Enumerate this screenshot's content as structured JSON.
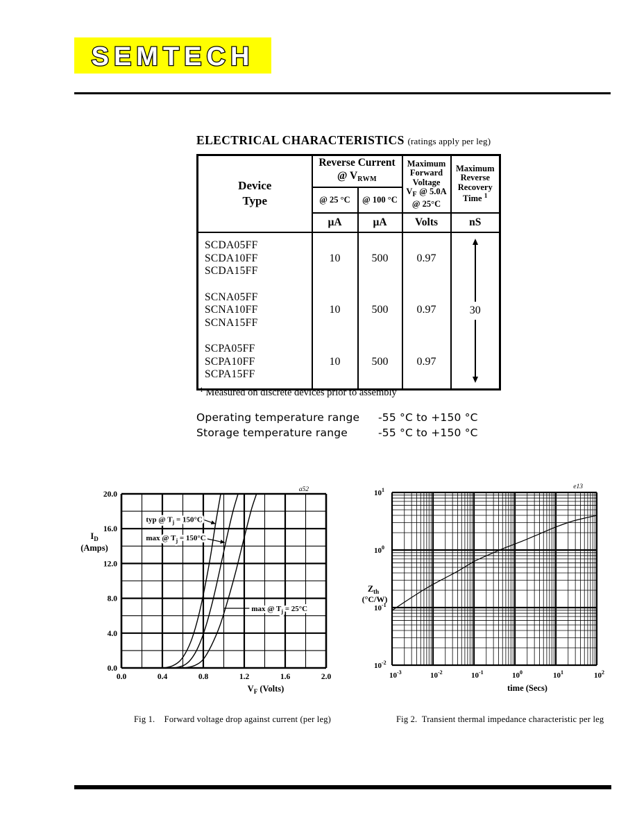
{
  "logo": {
    "text": "SEMTECH",
    "bg": "#ffff00"
  },
  "heading": {
    "title": "ELECTRICAL CHARACTERISTICS",
    "note": "(ratings apply per leg)"
  },
  "table": {
    "device_header": [
      "Device",
      "Type"
    ],
    "reverse_header": {
      "line1": "Reverse Current",
      "line2_pre": "@ V",
      "line2_sub": "RWM"
    },
    "fv_header": {
      "l1": "Maximum",
      "l2": "Forward",
      "l3": "Voltage",
      "l4_pre": "V",
      "l4_sub": "F",
      "l4_post": " @ 5.0A",
      "l5": "@ 25°C"
    },
    "rr_header": {
      "l1": "Maximum",
      "l2": "Reverse",
      "l3": "Recovery",
      "l4": "Time",
      "sup": "1"
    },
    "sub_25": "@ 25 °C",
    "sub_100": "@ 100 °C",
    "units": [
      "µA",
      "µA",
      "Volts",
      "nS"
    ],
    "rows": [
      {
        "devices": [
          "SCDA05FF",
          "SCDA10FF",
          "SCDA15FF"
        ],
        "i25": "10",
        "i100": "500",
        "vf": "0.97"
      },
      {
        "devices": [
          "SCNA05FF",
          "SCNA10FF",
          "SCNA15FF"
        ],
        "i25": "10",
        "i100": "500",
        "vf": "0.97"
      },
      {
        "devices": [
          "SCPA05FF",
          "SCPA10FF",
          "SCPA15FF"
        ],
        "i25": "10",
        "i100": "500",
        "vf": "0.97"
      }
    ],
    "recovery_value": "30",
    "footnote_sup": "1",
    "footnote_text": " Measured on discrete devices prior to assembly"
  },
  "temperature": {
    "rows": [
      {
        "label": "Operating temperature range",
        "value": "-55 °C to +150 °C"
      },
      {
        "label": "Storage temperature range",
        "value": "-55 °C to +150 °C"
      }
    ]
  },
  "chart_data": [
    {
      "id": "fig1",
      "type": "line",
      "corner_label": "a52",
      "caption": "Fig 1.    Forward voltage drop against current (per leg)",
      "xlabel": {
        "pre": "V",
        "sub": "F",
        "post": "  (Volts)"
      },
      "ylabel_lines": [
        {
          "pre": "I",
          "sub": "D"
        },
        {
          "pre": "(Amps)",
          "sub": ""
        }
      ],
      "xlim": [
        0.0,
        2.0
      ],
      "ylim": [
        0.0,
        20.0
      ],
      "x_minor_step": 0.2,
      "y_minor_step": 2.0,
      "xtick_labels": [
        "0.0",
        "0.4",
        "0.8",
        "1.2",
        "1.6",
        "2.0"
      ],
      "ytick_labels": [
        "0.0",
        "4.0",
        "8.0",
        "12.0",
        "16.0",
        "20.0"
      ],
      "grid": true,
      "legend_position": "in-plot annotations",
      "series": [
        {
          "name": "typ @ Tj = 150°C",
          "points": [
            [
              0.42,
              0
            ],
            [
              0.5,
              0.25
            ],
            [
              0.57,
              0.8
            ],
            [
              0.63,
              1.8
            ],
            [
              0.69,
              3.4
            ],
            [
              0.75,
              5.8
            ],
            [
              0.81,
              9.0
            ],
            [
              0.87,
              12.8
            ],
            [
              0.92,
              16.6
            ],
            [
              0.97,
              20
            ]
          ]
        },
        {
          "name": "max @ Tj = 150°C",
          "points": [
            [
              0.52,
              0
            ],
            [
              0.61,
              0.3
            ],
            [
              0.68,
              1.0
            ],
            [
              0.75,
              2.4
            ],
            [
              0.82,
              4.6
            ],
            [
              0.89,
              7.6
            ],
            [
              0.96,
              11.2
            ],
            [
              1.03,
              15.0
            ],
            [
              1.09,
              18.0
            ],
            [
              1.14,
              20
            ]
          ]
        },
        {
          "name": "max @ Tj = 25°C",
          "points": [
            [
              0.62,
              0
            ],
            [
              0.72,
              0.3
            ],
            [
              0.8,
              1.0
            ],
            [
              0.88,
              2.6
            ],
            [
              0.96,
              4.8
            ],
            [
              1.04,
              7.8
            ],
            [
              1.12,
              11.2
            ],
            [
              1.2,
              15.0
            ],
            [
              1.27,
              18.2
            ],
            [
              1.32,
              20
            ]
          ]
        }
      ],
      "annotations": [
        {
          "pre": "typ @ T",
          "sub": "j",
          "post": " = 150°C",
          "tx": 0.24,
          "ty": 17.1,
          "leader": [
            [
              0.81,
              17.0
            ],
            [
              0.92,
              16.55
            ]
          ],
          "arrow": true
        },
        {
          "pre": "max @ T",
          "sub": "j",
          "post": " = 150°C",
          "tx": 0.24,
          "ty": 15.0,
          "leader": [
            [
              0.83,
              14.85
            ],
            [
              1.01,
              14.4
            ]
          ],
          "arrow": true
        },
        {
          "pre": "max @ T",
          "sub": "j",
          "post": " = 25°C",
          "tx": 1.27,
          "ty": 6.85,
          "leader": [
            [
              1.25,
              6.85
            ],
            [
              1.0,
              6.85
            ]
          ],
          "arrow": false
        }
      ]
    },
    {
      "id": "fig2",
      "type": "line",
      "xscale": "log",
      "yscale": "log",
      "corner_label": "e13",
      "caption": "Fig 2.  Transient thermal impedance characteristic per leg",
      "xlabel_plain": "time  (Secs)",
      "ylabel_lines": [
        {
          "pre": "Z",
          "sub": "th"
        },
        {
          "pre": "(°C/W)",
          "sub": ""
        }
      ],
      "xlim_exp": [
        -3,
        2
      ],
      "ylim_exp": [
        -2,
        1
      ],
      "xtick_exps": [
        -3,
        -2,
        -1,
        0,
        1,
        2
      ],
      "ytick_exps": [
        1,
        0,
        -1,
        -2
      ],
      "grid": true,
      "series": [
        {
          "name": "transient thermal impedance",
          "points_log": [
            [
              -3,
              -1.05
            ],
            [
              -2.6,
              -0.86
            ],
            [
              -2.2,
              -0.68
            ],
            [
              -1.8,
              -0.52
            ],
            [
              -1.4,
              -0.37
            ],
            [
              -1.0,
              -0.2
            ],
            [
              -0.6,
              -0.07
            ],
            [
              -0.2,
              0.05
            ],
            [
              0.2,
              0.16
            ],
            [
              0.6,
              0.28
            ],
            [
              1.0,
              0.4
            ],
            [
              1.4,
              0.5
            ],
            [
              1.8,
              0.57
            ],
            [
              2.0,
              0.6
            ]
          ]
        }
      ]
    }
  ]
}
